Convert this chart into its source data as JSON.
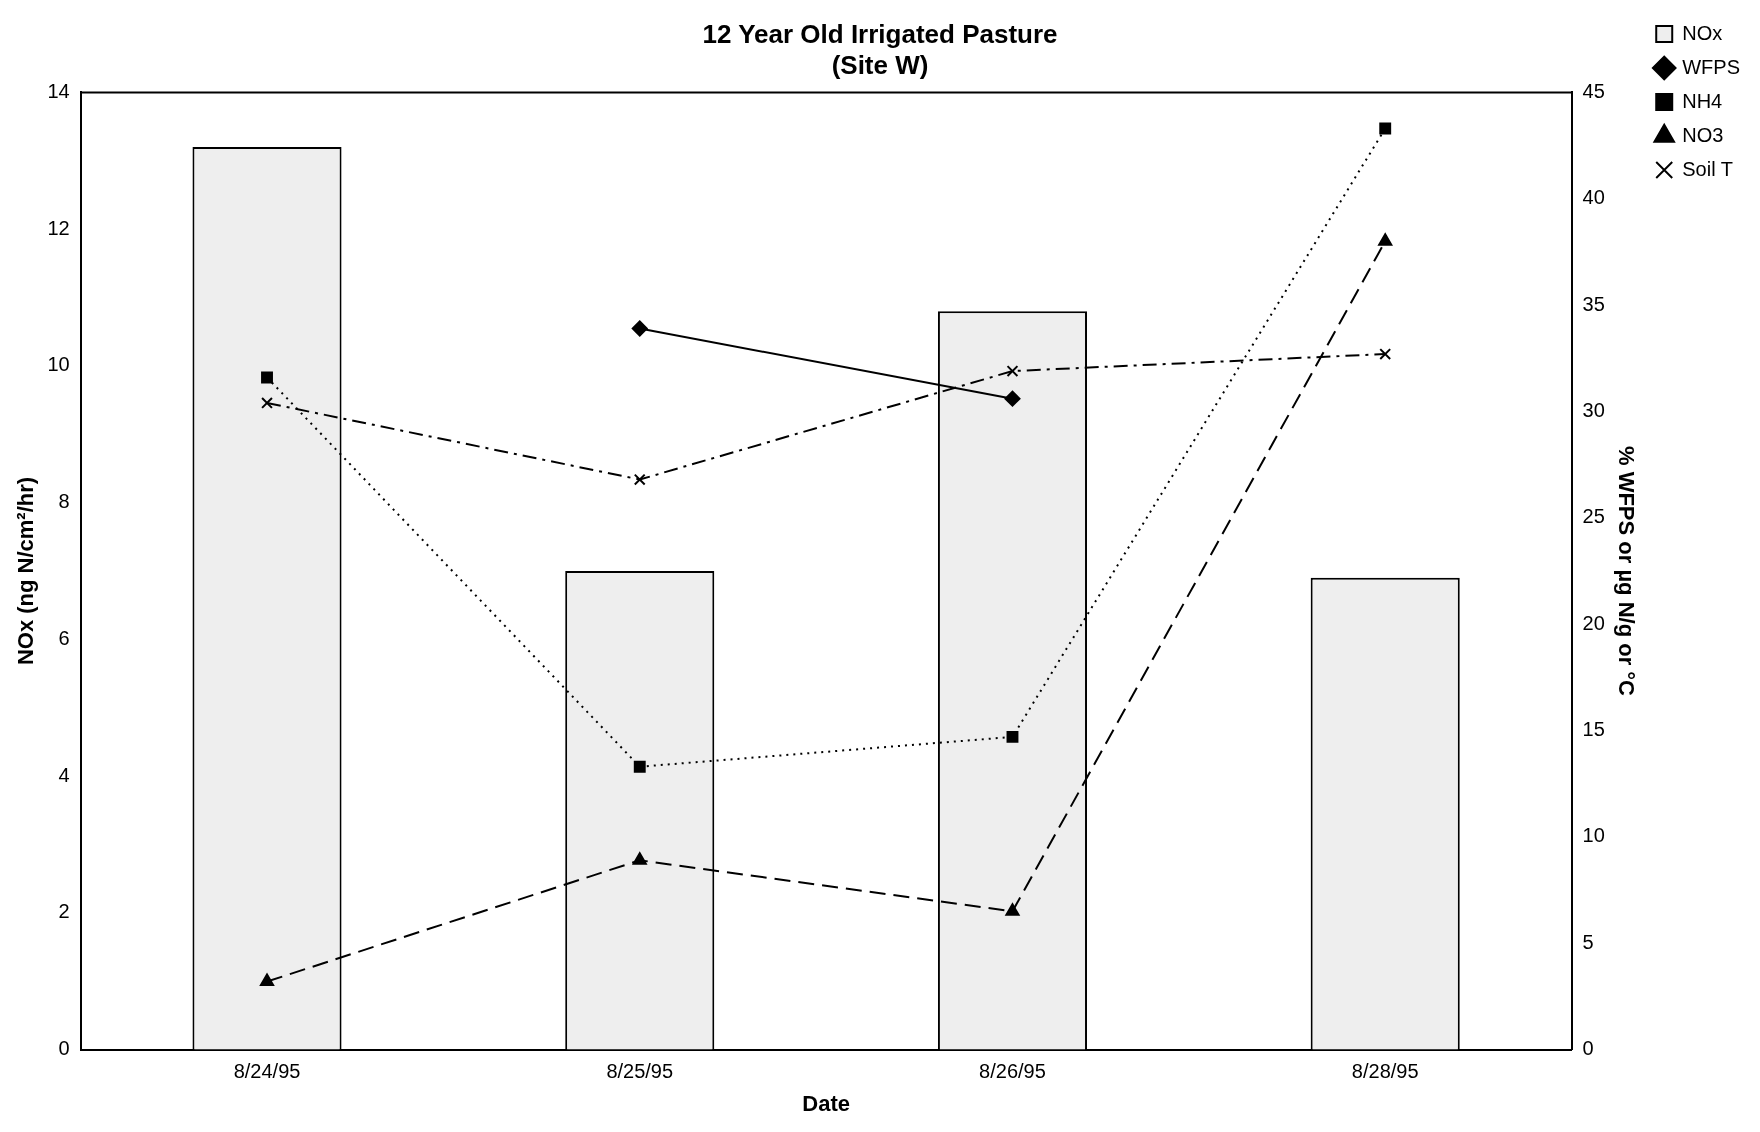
{
  "chart_data": {
    "type": "bar",
    "title": "12 Year Old Irrigated Pasture\n(Site W)",
    "xlabel": "Date",
    "ylabel": "NOx (ng N/cm²/hr)",
    "y2label": "% WFPS or µg N/g or °C",
    "categories": [
      "8/24/95",
      "8/25/95",
      "8/26/95",
      "8/28/95"
    ],
    "series": [
      {
        "name": "NOx",
        "color": "#eeeeee",
        "values": [
          13.2,
          7.0,
          10.8,
          6.9
        ]
      },
      {
        "name": "WFPS",
        "type": "line",
        "axis": "y2",
        "color": "#000000",
        "marker": "diamond",
        "line_style": "solid",
        "values": [
          null,
          33.9,
          30.6,
          null
        ]
      },
      {
        "name": "NH4",
        "type": "line",
        "axis": "y2",
        "color": "#000000",
        "marker": "square",
        "line_style": "dotted",
        "values": [
          31.6,
          13.3,
          14.7,
          43.3
        ]
      },
      {
        "name": "NO3",
        "type": "line",
        "axis": "y2",
        "color": "#000000",
        "marker": "triangle",
        "line_style": "dashed",
        "values": [
          3.2,
          8.9,
          6.5,
          38.0
        ]
      },
      {
        "name": "Soil T",
        "type": "line",
        "axis": "y2",
        "color": "#000000",
        "marker": "cross",
        "line_style": "dashdot",
        "values": [
          30.4,
          26.8,
          31.9,
          32.7
        ]
      }
    ],
    "ylim": [
      0,
      14
    ],
    "yticks": [
      0,
      2,
      4,
      6,
      8,
      10,
      12,
      14
    ],
    "y2lim": [
      0,
      45
    ],
    "y2ticks": [
      0,
      5,
      10,
      15,
      20,
      25,
      30,
      35,
      40,
      45
    ],
    "grid": false,
    "legend": "top right"
  }
}
